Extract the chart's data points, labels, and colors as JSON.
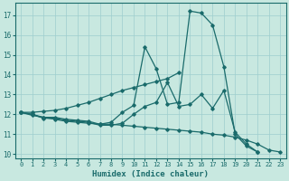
{
  "xlabel": "Humidex (Indice chaleur)",
  "xlim": [
    -0.5,
    23.5
  ],
  "ylim": [
    9.8,
    17.6
  ],
  "yticks": [
    10,
    11,
    12,
    13,
    14,
    15,
    16,
    17
  ],
  "xticks": [
    0,
    1,
    2,
    3,
    4,
    5,
    6,
    7,
    8,
    9,
    10,
    11,
    12,
    13,
    14,
    15,
    16,
    17,
    18,
    19,
    20,
    21,
    22,
    23
  ],
  "bg_color": "#c8e8e0",
  "line_color": "#1a6b6b",
  "grid_color": "#9ecece",
  "series": [
    [
      12.1,
      12.0,
      11.85,
      11.85,
      11.75,
      11.7,
      11.65,
      11.5,
      11.6,
      12.1,
      12.45,
      15.4,
      14.3,
      12.5,
      12.6,
      17.2,
      17.1,
      16.5,
      14.4,
      11.0,
      10.4,
      10.1
    ],
    [
      12.1,
      12.0,
      11.8,
      11.8,
      11.7,
      11.65,
      11.6,
      11.45,
      11.45,
      11.55,
      12.0,
      12.4,
      12.6,
      13.6,
      12.4,
      12.5,
      13.0,
      12.3,
      13.2,
      11.1,
      10.5,
      10.1
    ],
    [
      12.1,
      12.1,
      12.15,
      12.2,
      12.3,
      12.45,
      12.6,
      12.8,
      13.0,
      13.2,
      13.35,
      13.5,
      13.65,
      13.8,
      14.1
    ],
    [
      12.1,
      11.95,
      11.85,
      11.75,
      11.65,
      11.6,
      11.55,
      11.5,
      11.5,
      11.45,
      11.4,
      11.35,
      11.3,
      11.25,
      11.2,
      11.15,
      11.1,
      11.0,
      10.95,
      10.85,
      10.7,
      10.5,
      10.2,
      10.1
    ]
  ],
  "series_x": [
    [
      0,
      1,
      2,
      3,
      4,
      5,
      6,
      7,
      8,
      9,
      10,
      11,
      12,
      13,
      14,
      15,
      16,
      17,
      18,
      19,
      20,
      21
    ],
    [
      0,
      1,
      2,
      3,
      4,
      5,
      6,
      7,
      8,
      9,
      10,
      11,
      12,
      13,
      14,
      15,
      16,
      17,
      18,
      19,
      20,
      21
    ],
    [
      0,
      1,
      2,
      3,
      4,
      5,
      6,
      7,
      8,
      9,
      10,
      11,
      12,
      13,
      14
    ],
    [
      0,
      1,
      2,
      3,
      4,
      5,
      6,
      7,
      8,
      9,
      10,
      11,
      12,
      13,
      14,
      15,
      16,
      17,
      18,
      19,
      20,
      21,
      22,
      23
    ]
  ]
}
